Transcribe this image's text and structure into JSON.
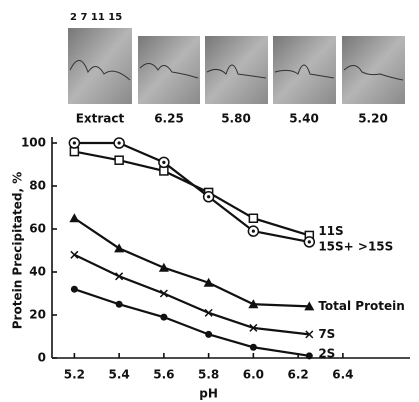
{
  "gel_lane_label": "2 7 11 15",
  "gel_labels": [
    "Extract",
    "6.25",
    "5.80",
    "5.40",
    "5.20"
  ],
  "chart_data": {
    "type": "line",
    "x_label": "pH",
    "y_label": "Protein Precipitated, %",
    "xlim": [
      5.1,
      6.7
    ],
    "xticks": [
      5.2,
      5.4,
      5.6,
      5.8,
      {
        "value": 6,
        "label": "6.0"
      },
      6.2,
      6.4
    ],
    "ylim": [
      0,
      100
    ],
    "yticks": [
      0,
      20,
      40,
      60,
      80,
      100
    ],
    "x": [
      5.2,
      5.4,
      5.6,
      5.8,
      6.0,
      6.25
    ],
    "series": [
      {
        "name": "11S",
        "color": "#111111",
        "marker": "square",
        "values": [
          96,
          92,
          87,
          77,
          65,
          57
        ]
      },
      {
        "name": "15S+ >15S",
        "color": "#111111",
        "marker": "circled-dot",
        "values": [
          100,
          100,
          91,
          75,
          59,
          54
        ]
      },
      {
        "name": "Total Protein",
        "color": "#111111",
        "marker": "triangle",
        "values": [
          65,
          51,
          42,
          35,
          25,
          24
        ]
      },
      {
        "name": "7S",
        "color": "#111111",
        "marker": "x",
        "values": [
          48,
          38,
          30,
          21,
          14,
          11
        ]
      },
      {
        "name": "2S",
        "color": "#111111",
        "marker": "dot",
        "values": [
          32,
          25,
          19,
          11,
          5,
          1
        ]
      }
    ]
  }
}
